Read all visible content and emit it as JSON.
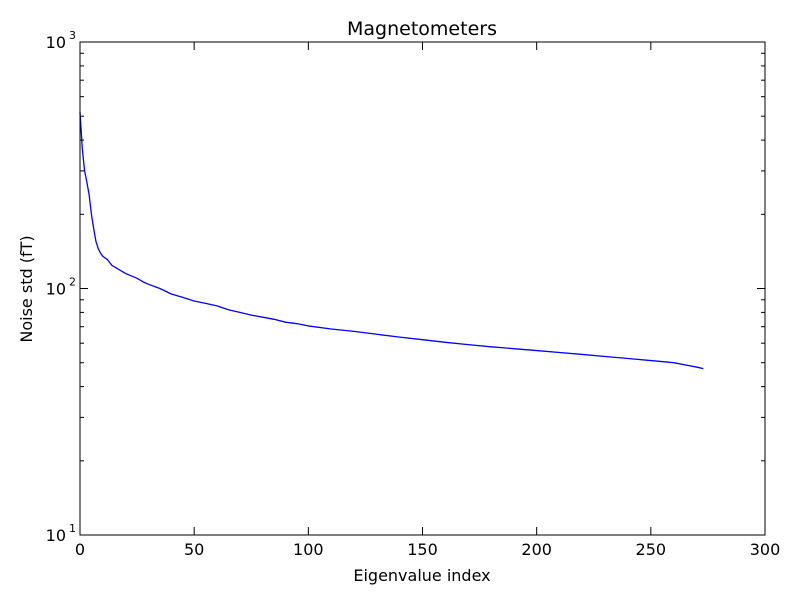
{
  "chart_data": {
    "type": "line",
    "title": "Magnetometers",
    "xlabel": "Eigenvalue index",
    "ylabel": "Noise std (fT)",
    "xlim": [
      0,
      300
    ],
    "ylim": [
      10,
      1000
    ],
    "yscale": "log",
    "grid": false,
    "line_color": "#0000ff",
    "x_ticks": [
      0,
      50,
      100,
      150,
      200,
      250,
      300
    ],
    "x_tick_labels": [
      "0",
      "50",
      "100",
      "150",
      "200",
      "250",
      "300"
    ],
    "y_ticks": [
      10,
      100,
      1000
    ],
    "y_tick_labels": [
      {
        "base": "10",
        "exp": "1"
      },
      {
        "base": "10",
        "exp": "2"
      },
      {
        "base": "10",
        "exp": "3"
      }
    ],
    "series": [
      {
        "points": [
          [
            0,
            520
          ],
          [
            1,
            370
          ],
          [
            2,
            300
          ],
          [
            3,
            270
          ],
          [
            4,
            240
          ],
          [
            5,
            200
          ],
          [
            6,
            175
          ],
          [
            7,
            155
          ],
          [
            8,
            145
          ],
          [
            9,
            139
          ],
          [
            10,
            135
          ],
          [
            12,
            131
          ],
          [
            14,
            124
          ],
          [
            16,
            121
          ],
          [
            18,
            118
          ],
          [
            20,
            115
          ],
          [
            22,
            113
          ],
          [
            25,
            110
          ],
          [
            28,
            106
          ],
          [
            30,
            104
          ],
          [
            35,
            100
          ],
          [
            40,
            95
          ],
          [
            45,
            92
          ],
          [
            50,
            89
          ],
          [
            55,
            87
          ],
          [
            60,
            85
          ],
          [
            65,
            82
          ],
          [
            70,
            80
          ],
          [
            75,
            78
          ],
          [
            80,
            76.5
          ],
          [
            85,
            75
          ],
          [
            90,
            73
          ],
          [
            95,
            72
          ],
          [
            100,
            70.5
          ],
          [
            110,
            68.5
          ],
          [
            120,
            67
          ],
          [
            130,
            65.2
          ],
          [
            140,
            63.5
          ],
          [
            150,
            62
          ],
          [
            160,
            60.5
          ],
          [
            170,
            59.2
          ],
          [
            180,
            58
          ],
          [
            190,
            57
          ],
          [
            200,
            56
          ],
          [
            210,
            55
          ],
          [
            220,
            54
          ],
          [
            230,
            53
          ],
          [
            240,
            52
          ],
          [
            250,
            51
          ],
          [
            260,
            50
          ],
          [
            265,
            49
          ],
          [
            270,
            48
          ],
          [
            273,
            47.3
          ]
        ]
      }
    ]
  }
}
